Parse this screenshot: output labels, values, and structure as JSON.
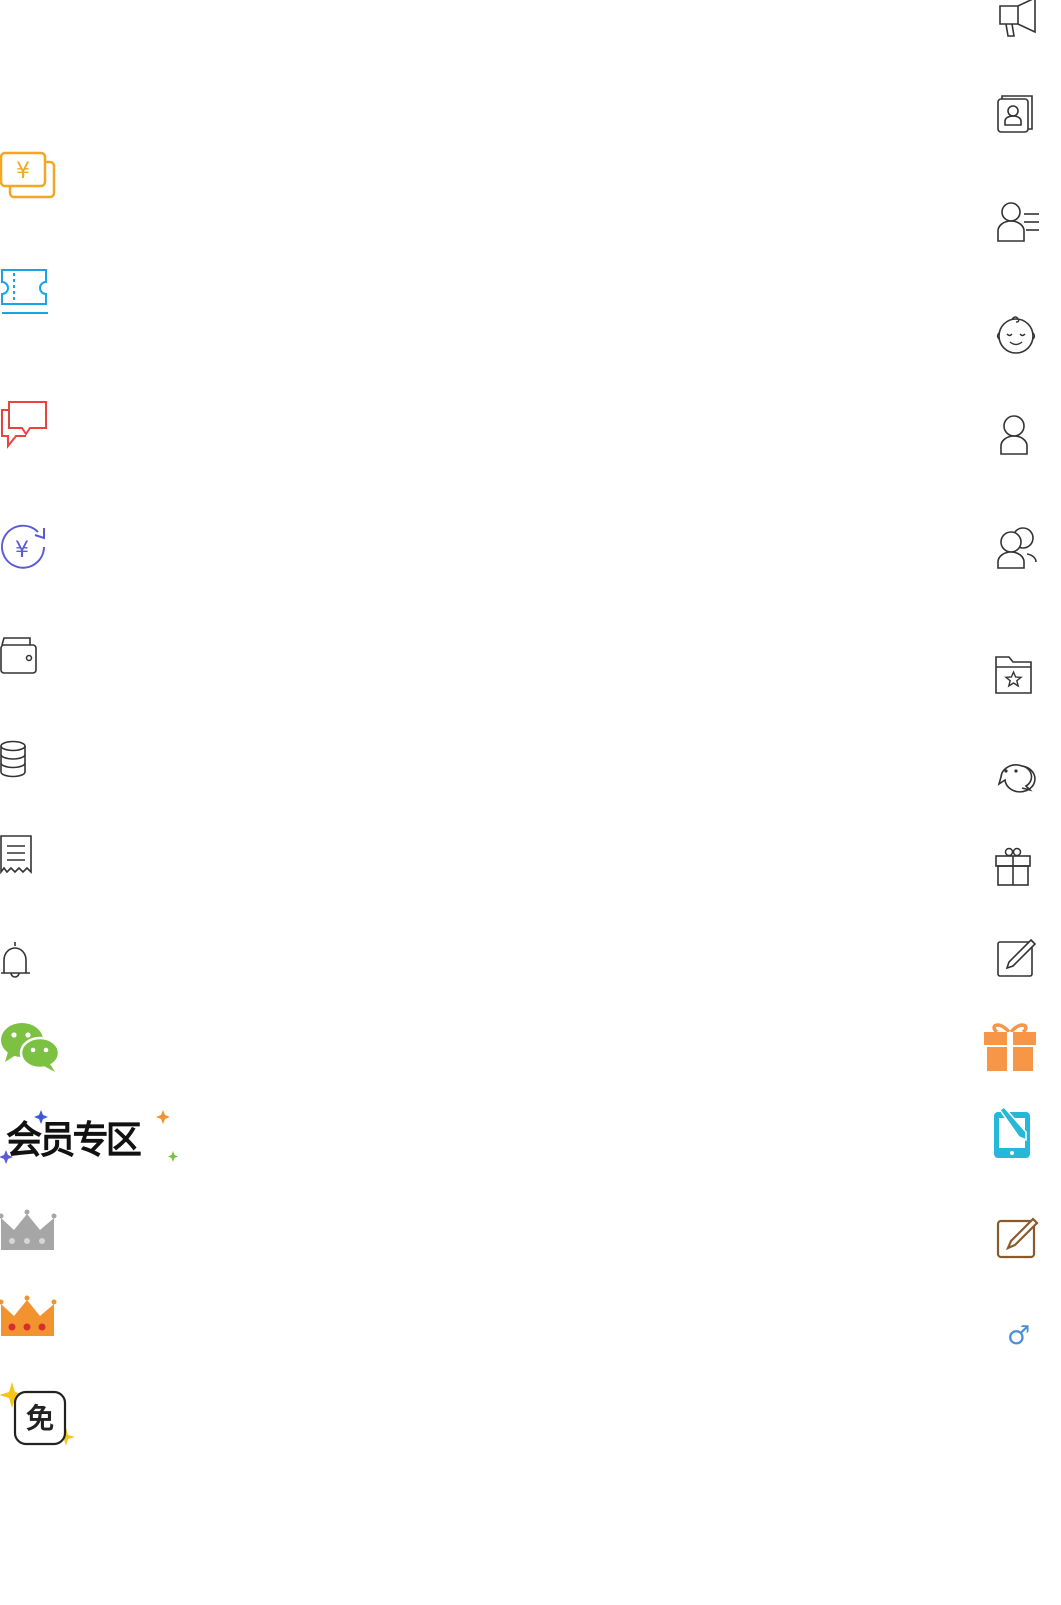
{
  "left_column": [
    {
      "name": "yen-cards-icon",
      "color": "#f5a623"
    },
    {
      "name": "coupon-ticket-icon",
      "color": "#1aa3e8"
    },
    {
      "name": "chat-bubbles-icon",
      "color": "#e8453c"
    },
    {
      "name": "yen-refresh-icon",
      "color": "#5b5bd6",
      "glyph": "¥"
    },
    {
      "name": "wallet-icon",
      "color": "#333333"
    },
    {
      "name": "database-coins-icon",
      "color": "#333333"
    },
    {
      "name": "receipt-icon",
      "color": "#333333"
    },
    {
      "name": "bell-icon",
      "color": "#333333"
    },
    {
      "name": "wechat-icon",
      "color": "#7cc142"
    },
    {
      "name": "member-zone-logo",
      "text": "会员专区"
    },
    {
      "name": "silver-crown-icon",
      "color": "#a6a6a6"
    },
    {
      "name": "gold-crown-icon",
      "color": "#f29330"
    },
    {
      "name": "free-badge-icon",
      "text": "免",
      "sparkle_color": "#f5c518"
    }
  ],
  "right_column": [
    {
      "name": "megaphone-icon",
      "color": "#333333"
    },
    {
      "name": "contact-book-icon",
      "color": "#333333"
    },
    {
      "name": "user-list-icon",
      "color": "#333333"
    },
    {
      "name": "baby-face-icon",
      "color": "#333333"
    },
    {
      "name": "user-icon",
      "color": "#333333"
    },
    {
      "name": "user-group-icon",
      "color": "#333333"
    },
    {
      "name": "star-folder-icon",
      "color": "#333333"
    },
    {
      "name": "chat-icon",
      "color": "#333333"
    },
    {
      "name": "gift-outline-icon",
      "color": "#333333"
    },
    {
      "name": "edit-icon",
      "color": "#333333"
    },
    {
      "name": "gift-filled-icon",
      "color": "#f79646"
    },
    {
      "name": "phone-edit-icon",
      "color": "#26b8d8"
    },
    {
      "name": "edit-brown-icon",
      "color": "#8b5a2b"
    },
    {
      "name": "male-icon",
      "color": "#4a90d9",
      "glyph": "♂"
    }
  ]
}
